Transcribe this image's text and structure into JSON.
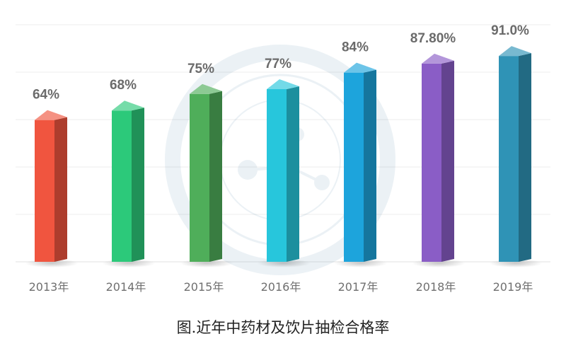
{
  "caption": "图.近年中药材及饮片抽检合格率",
  "chart_data": {
    "type": "bar",
    "categories": [
      "2013年",
      "2014年",
      "2015年",
      "2016年",
      "2017年",
      "2018年",
      "2019年"
    ],
    "values": [
      64,
      68,
      75,
      77,
      84,
      87.8,
      91.0
    ],
    "value_labels": [
      "64%",
      "68%",
      "75%",
      "77%",
      "84%",
      "87.80%",
      "91.0%"
    ],
    "colors": [
      "#f0553f",
      "#2cc97a",
      "#4fae5a",
      "#27c6dc",
      "#1da4dc",
      "#8a5dc6",
      "#2f93b6"
    ],
    "title": "",
    "xlabel": "",
    "ylabel": "",
    "ylim": [
      0,
      100
    ],
    "grid": true,
    "legend": "none"
  }
}
